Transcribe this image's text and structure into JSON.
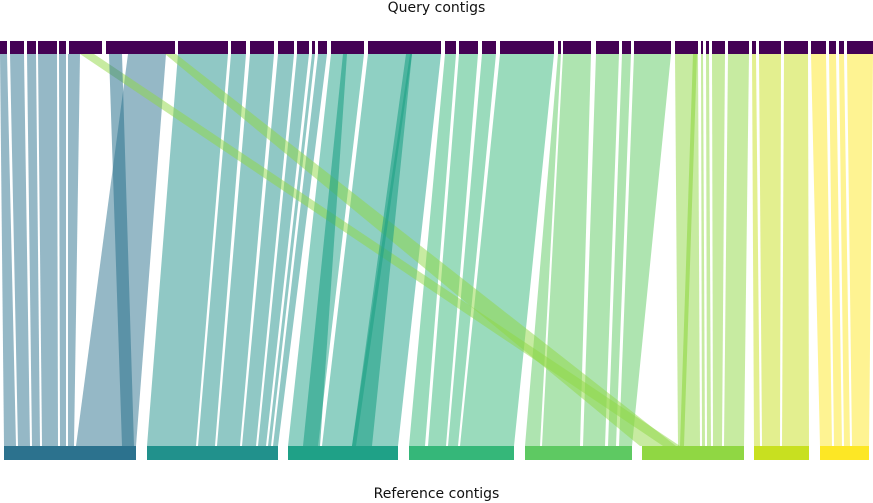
{
  "labels": {
    "query_axis": "Query contigs",
    "reference_axis": "Reference contigs"
  },
  "colors": {
    "query_bar": "#440154",
    "reference": [
      "#2c728e",
      "#21918c",
      "#1fa187",
      "#35b779",
      "#5ec962",
      "#90d743",
      "#c8e020",
      "#fde725"
    ]
  }
}
